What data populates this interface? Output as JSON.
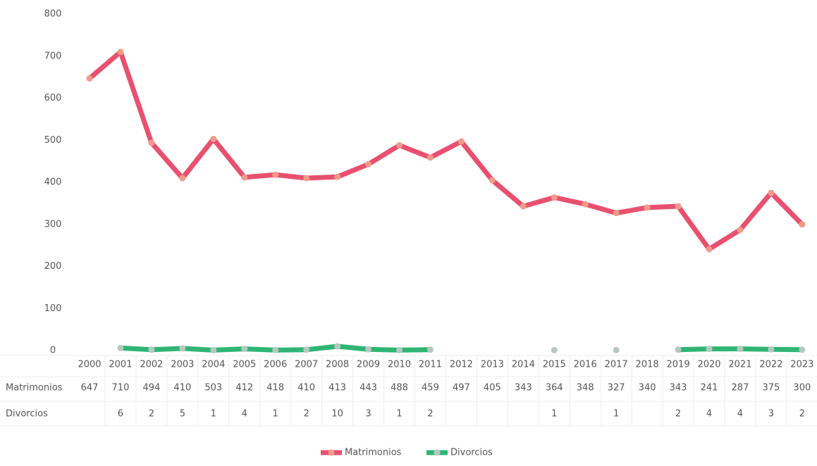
{
  "chart_data": {
    "type": "line",
    "categories": [
      "2000",
      "2001",
      "2002",
      "2003",
      "2004",
      "2005",
      "2006",
      "2007",
      "2008",
      "2009",
      "2010",
      "2011",
      "2012",
      "2013",
      "2014",
      "2015",
      "2016",
      "2017",
      "2018",
      "2019",
      "2020",
      "2021",
      "2022",
      "2023"
    ],
    "series": [
      {
        "name": "Matrimonios",
        "color": "#e9506f",
        "marker_color": "#f29a8a",
        "values": [
          647,
          710,
          494,
          410,
          503,
          412,
          418,
          410,
          413,
          443,
          488,
          459,
          497,
          405,
          343,
          364,
          348,
          327,
          340,
          343,
          241,
          287,
          375,
          300
        ]
      },
      {
        "name": "Divorcios",
        "color": "#2fb574",
        "marker_color": "#b8c8c0",
        "values": [
          null,
          6,
          2,
          5,
          1,
          4,
          1,
          2,
          10,
          3,
          1,
          2,
          null,
          null,
          null,
          1,
          null,
          1,
          null,
          2,
          4,
          4,
          3,
          2
        ]
      }
    ],
    "ylim": [
      0,
      800
    ],
    "yticks": [
      0,
      100,
      200,
      300,
      400,
      500,
      600,
      700,
      800
    ],
    "grid": false,
    "legend": "bottom"
  }
}
